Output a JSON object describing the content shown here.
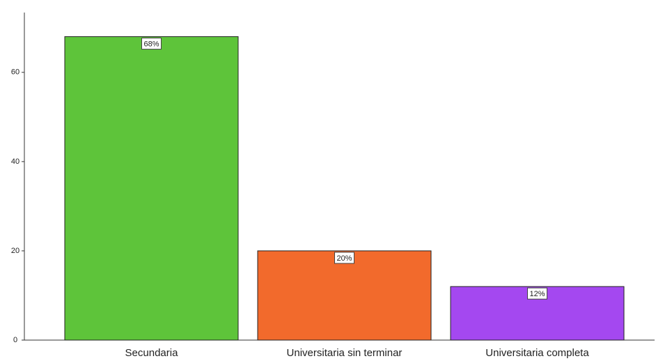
{
  "chart_data": {
    "type": "bar",
    "categories": [
      "Secundaria",
      "Universitaria sin terminar",
      "Universitaria completa"
    ],
    "values": [
      68,
      20,
      12
    ],
    "value_labels": [
      "68%",
      "20%",
      "12%"
    ],
    "colors": [
      "#5ec43a",
      "#f26a2c",
      "#a448f0"
    ],
    "ylim": [
      0,
      73.4
    ],
    "yticks": [
      0,
      20,
      40,
      60
    ],
    "grid": false
  }
}
